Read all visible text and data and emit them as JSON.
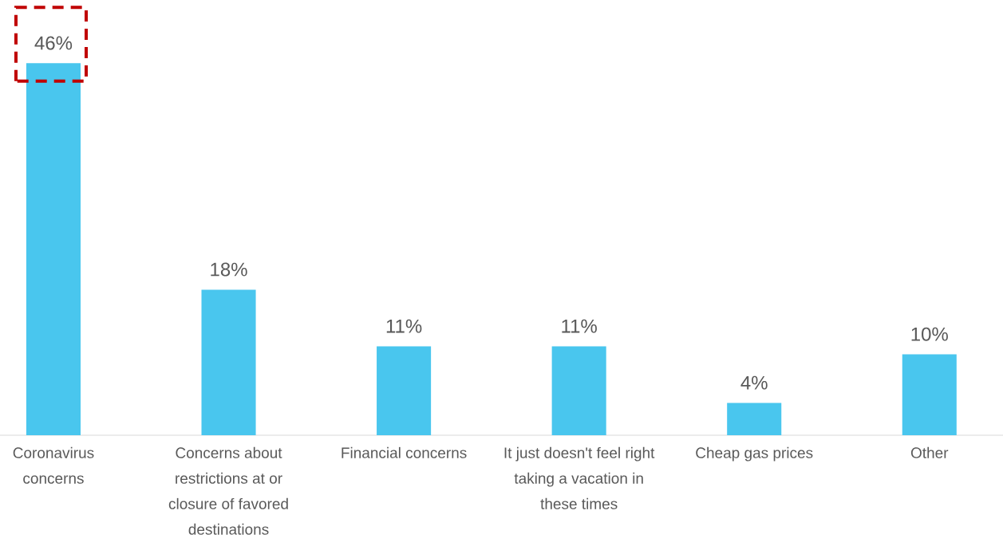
{
  "chart_data": {
    "type": "bar",
    "categories": [
      "Coronavirus concerns",
      "Concerns about restrictions at or closure of favored destinations",
      "Financial concerns",
      "It just doesn't feel right taking a vacation in these times",
      "Cheap gas prices",
      "Other"
    ],
    "values": [
      46,
      18,
      11,
      11,
      4,
      10
    ],
    "value_labels": [
      "46%",
      "18%",
      "11%",
      "11%",
      "4%",
      "10%"
    ],
    "color": "#49c6ee"
  }
}
